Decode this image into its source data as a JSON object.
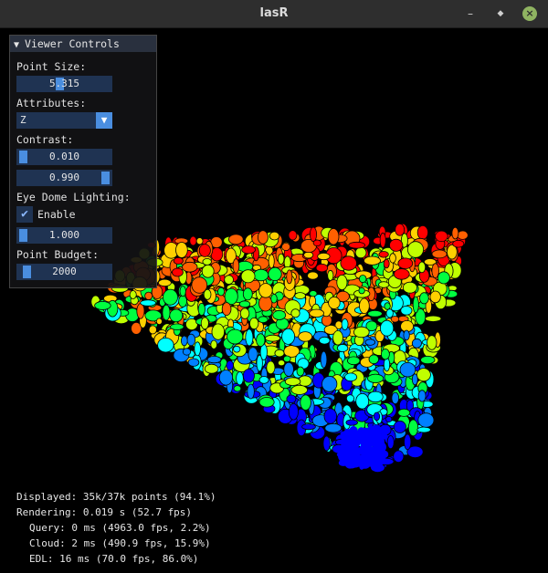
{
  "window": {
    "title": "lasR",
    "minimize_glyph": "–",
    "maximize_glyph": "◆",
    "close_glyph": "×"
  },
  "panel": {
    "title": "Viewer Controls",
    "collapse_glyph": "▼",
    "point_size_label": "Point Size:",
    "point_size_value": "5.315",
    "attributes_label": "Attributes:",
    "attributes_value": "Z",
    "attributes_arrow": "▼",
    "contrast_label": "Contrast:",
    "contrast_min": "0.010",
    "contrast_max": "0.990",
    "edl_label": "Eye Dome Lighting:",
    "edl_enable_label": "Enable",
    "edl_enabled": true,
    "check_glyph": "✔",
    "edl_strength": "1.000",
    "point_budget_label": "Point Budget:",
    "point_budget_value": "2000"
  },
  "stats": {
    "displayed": "Displayed: 35k/37k points (94.1%)",
    "rendering": "Rendering: 0.019 s (52.7 fps)",
    "query": "Query: 0 ms (4963.0 fps, 2.2%)",
    "cloud": "Cloud: 2 ms (490.9 fps, 15.9%)",
    "edl": "EDL: 16 ms (70.0 fps, 86.0%)"
  },
  "colors": {
    "panel_header": "#29303e",
    "slider_bg": "#1f3352",
    "slider_grab": "#4a8ee0",
    "colormap": [
      "#0000ff",
      "#0080ff",
      "#00ffff",
      "#00ff40",
      "#c0ff00",
      "#ffd000",
      "#ff6000",
      "#ff0000"
    ]
  }
}
